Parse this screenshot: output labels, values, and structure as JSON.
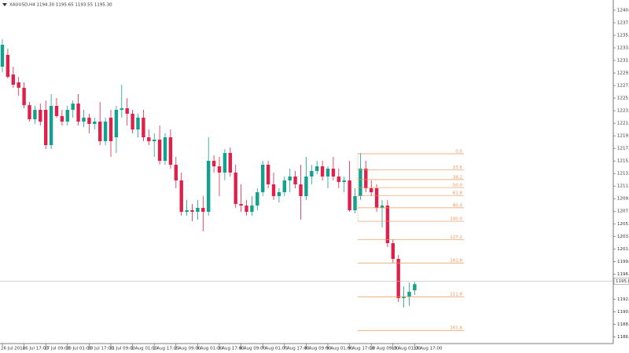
{
  "chart_data": {
    "type": "candlestick",
    "title": "XAUUSD,H4  1194.30 1195.65 1193.55 1195.30",
    "colors": {
      "up": "#12a08f",
      "down": "#e0204a",
      "fib": "#e8955a",
      "price_line": "#bbbbbb"
    },
    "categories": [
      "26 Jul 2018",
      null,
      null,
      null,
      "26 Jul 17:00",
      null,
      null,
      null,
      "27 Jul 09:00",
      null,
      null,
      null,
      "30 Jul 01:00",
      null,
      null,
      null,
      "30 Jul 17:00",
      null,
      null,
      null,
      "31 Jul 09:00",
      null,
      null,
      null,
      "1 Aug 01:00",
      null,
      null,
      null,
      "1 Aug 17:00",
      null,
      null,
      null,
      "2 Aug 09:00",
      null,
      null,
      null,
      "3 Aug 01:00",
      null,
      null,
      null,
      "3 Aug 17:00",
      null,
      null,
      null,
      "6 Aug 09:00",
      null,
      null,
      null,
      "7 Aug 01:00",
      null,
      null,
      null,
      "7 Aug 17:00",
      null,
      null,
      null,
      "8 Aug 09:00",
      null,
      null,
      null,
      "9 Aug 01:00",
      null,
      null,
      null,
      "9 Aug 17:00",
      null,
      null,
      null,
      "10 Aug 09:00",
      null,
      null,
      null,
      "13 Aug 01:00",
      null,
      null,
      null,
      "13 Aug 17:00"
    ],
    "open": [
      1230.78,
      1232.7,
      1229.5,
      1228.22,
      1227.34,
      1224.5,
      1222.2,
      1223.74,
      1223.74,
      1217.98,
      1224.38,
      1222.72,
      1221.82,
      1223.74,
      1224.76,
      1221.82,
      1222.46,
      1221.44,
      1221.82,
      1218.62,
      1222.46,
      1219.26,
      1223.74,
      1224.0,
      1223.1,
      1220.54,
      1222.46,
      1219.26,
      1218.62,
      1218.88,
      1215.42,
      1219.26,
      1214.78,
      1212.22,
      1207.1,
      1207.36,
      1207.1,
      1207.74,
      1207.1,
      1215.42,
      1214.52,
      1213.5,
      1216.7,
      1213.5,
      1208.38,
      1208.12,
      1207.1,
      1208.12,
      1210.3,
      1214.78,
      1211.58,
      1209.66,
      1210.3,
      1212.22,
      1212.86,
      1211.58,
      1209.66,
      1212.86,
      1213.76,
      1214.52,
      1212.86,
      1214.14,
      1212.86,
      1211.96,
      1212.22,
      1207.36,
      1209.66,
      1214.14,
      1210.94,
      1210.94,
      1207.74,
      1208.12,
      1201.98,
      1199.42,
      1193.02,
      1193.28,
      1194.3
    ],
    "high": [
      1235.26,
      1233.72,
      1230.78,
      1229.12,
      1228.22,
      1225.02,
      1224.38,
      1224.76,
      1225.26,
      1226.3,
      1225.66,
      1223.74,
      1224.38,
      1225.26,
      1226.3,
      1223.74,
      1223.1,
      1222.46,
      1225.02,
      1222.46,
      1223.74,
      1224.38,
      1227.84,
      1225.66,
      1223.74,
      1223.1,
      1223.74,
      1220.54,
      1219.9,
      1221.18,
      1219.9,
      1220.54,
      1216.06,
      1213.5,
      1209.02,
      1208.38,
      1209.02,
      1209.66,
      1219.26,
      1216.32,
      1216.06,
      1217.34,
      1217.6,
      1214.78,
      1211.58,
      1209.02,
      1209.66,
      1210.94,
      1215.42,
      1215.42,
      1213.5,
      1210.94,
      1212.86,
      1214.14,
      1213.76,
      1214.78,
      1216.06,
      1214.78,
      1215.42,
      1215.42,
      1214.52,
      1216.06,
      1214.14,
      1212.86,
      1215.42,
      1210.94,
      1216.7,
      1215.42,
      1212.22,
      1211.58,
      1209.02,
      1209.02,
      1202.62,
      1200.06,
      1194.94,
      1195.58,
      1195.65
    ],
    "low": [
      1229.88,
      1228.86,
      1227.34,
      1226.04,
      1224.0,
      1221.82,
      1221.44,
      1221.18,
      1217.34,
      1217.34,
      1222.46,
      1221.18,
      1221.18,
      1222.46,
      1221.18,
      1220.92,
      1219.9,
      1220.54,
      1217.98,
      1217.98,
      1216.06,
      1216.7,
      1222.46,
      1221.18,
      1219.9,
      1219.26,
      1218.62,
      1217.98,
      1216.06,
      1214.78,
      1214.78,
      1214.14,
      1210.94,
      1206.46,
      1206.46,
      1205.56,
      1205.82,
      1203.9,
      1206.46,
      1213.5,
      1209.66,
      1212.22,
      1212.86,
      1207.74,
      1207.1,
      1206.46,
      1206.46,
      1207.36,
      1209.66,
      1210.94,
      1209.02,
      1208.64,
      1209.66,
      1210.3,
      1210.94,
      1205.82,
      1209.02,
      1211.58,
      1213.24,
      1212.22,
      1210.94,
      1212.22,
      1210.94,
      1210.3,
      1207.1,
      1206.84,
      1209.02,
      1210.3,
      1209.66,
      1207.1,
      1204.54,
      1201.34,
      1198.78,
      1192.38,
      1191.48,
      1191.74,
      1193.55
    ],
    "close": [
      1234.36,
      1229.12,
      1227.84,
      1227.34,
      1224.5,
      1222.2,
      1223.74,
      1221.82,
      1217.98,
      1224.38,
      1222.72,
      1221.82,
      1223.74,
      1224.76,
      1221.82,
      1222.46,
      1221.44,
      1221.82,
      1218.62,
      1221.82,
      1218.62,
      1223.74,
      1224.0,
      1223.1,
      1220.54,
      1222.46,
      1219.26,
      1218.62,
      1218.88,
      1215.42,
      1219.26,
      1214.78,
      1212.22,
      1207.1,
      1207.36,
      1207.1,
      1207.74,
      1207.1,
      1215.42,
      1214.52,
      1213.5,
      1216.7,
      1213.5,
      1208.38,
      1208.12,
      1207.1,
      1208.12,
      1210.3,
      1214.78,
      1211.58,
      1209.66,
      1210.3,
      1212.22,
      1212.86,
      1211.58,
      1209.66,
      1212.86,
      1213.76,
      1214.52,
      1212.86,
      1214.14,
      1212.86,
      1211.96,
      1212.22,
      1207.36,
      1209.66,
      1214.14,
      1210.94,
      1210.3,
      1207.74,
      1208.12,
      1201.98,
      1199.42,
      1193.02,
      1193.28,
      1194.04,
      1195.3
    ],
    "ylim": [
      1185.6,
      1241.66
    ],
    "yticks": [
      {
        "value": 1240,
        "label": "1240.00"
      },
      {
        "value": 1237.95,
        "label": "1237.95"
      },
      {
        "value": 1235.9,
        "label": "1235.90"
      },
      {
        "value": 1233.85,
        "label": "1233.85"
      },
      {
        "value": 1231.8,
        "label": "1231.80"
      },
      {
        "value": 1229.75,
        "label": "1229.75"
      },
      {
        "value": 1227.7,
        "label": "1227.70"
      },
      {
        "value": 1225.65,
        "label": "1225.65"
      },
      {
        "value": 1223.6,
        "label": "1223.60"
      },
      {
        "value": 1221.55,
        "label": "1221.55"
      },
      {
        "value": 1219.5,
        "label": "1219.50"
      },
      {
        "value": 1217.45,
        "label": "1217.45"
      },
      {
        "value": 1215.4,
        "label": "1215.40"
      },
      {
        "value": 1213.35,
        "label": "1213.35"
      },
      {
        "value": 1211.3,
        "label": "1211.30"
      },
      {
        "value": 1209.25,
        "label": "1209.25"
      },
      {
        "value": 1207.2,
        "label": "1207.20"
      },
      {
        "value": 1205.15,
        "label": "1205.15"
      },
      {
        "value": 1203.1,
        "label": "1203.10"
      },
      {
        "value": 1201.05,
        "label": "1201.05"
      },
      {
        "value": 1199,
        "label": "1199.00"
      },
      {
        "value": 1196.95,
        "label": "1196.95"
      },
      {
        "value": 1192.85,
        "label": "1192.85"
      },
      {
        "value": 1190.8,
        "label": "1190.80"
      },
      {
        "value": 1188.75,
        "label": "1188.75"
      },
      {
        "value": 1186.7,
        "label": "1186.70"
      }
    ],
    "current_price": {
      "value": 1195.8,
      "label": "1195.80"
    },
    "fibonacci": {
      "start": 1216.57,
      "end": 1205.56,
      "levels": [
        {
          "value": 0,
          "label": "0.0"
        },
        {
          "value": 23.6,
          "label": "23.6"
        },
        {
          "value": 38.2,
          "label": "38.2"
        },
        {
          "value": 50,
          "label": "50.0"
        },
        {
          "value": 61.8,
          "label": "61.8"
        },
        {
          "value": 80,
          "label": "80.0"
        },
        {
          "value": 100,
          "label": "100.0"
        },
        {
          "value": 127.2,
          "label": "127.2"
        },
        {
          "value": 161.8,
          "label": "161.8"
        },
        {
          "value": 211.8,
          "label": "211.8"
        },
        {
          "value": 261.8,
          "label": "261.8"
        }
      ]
    }
  }
}
